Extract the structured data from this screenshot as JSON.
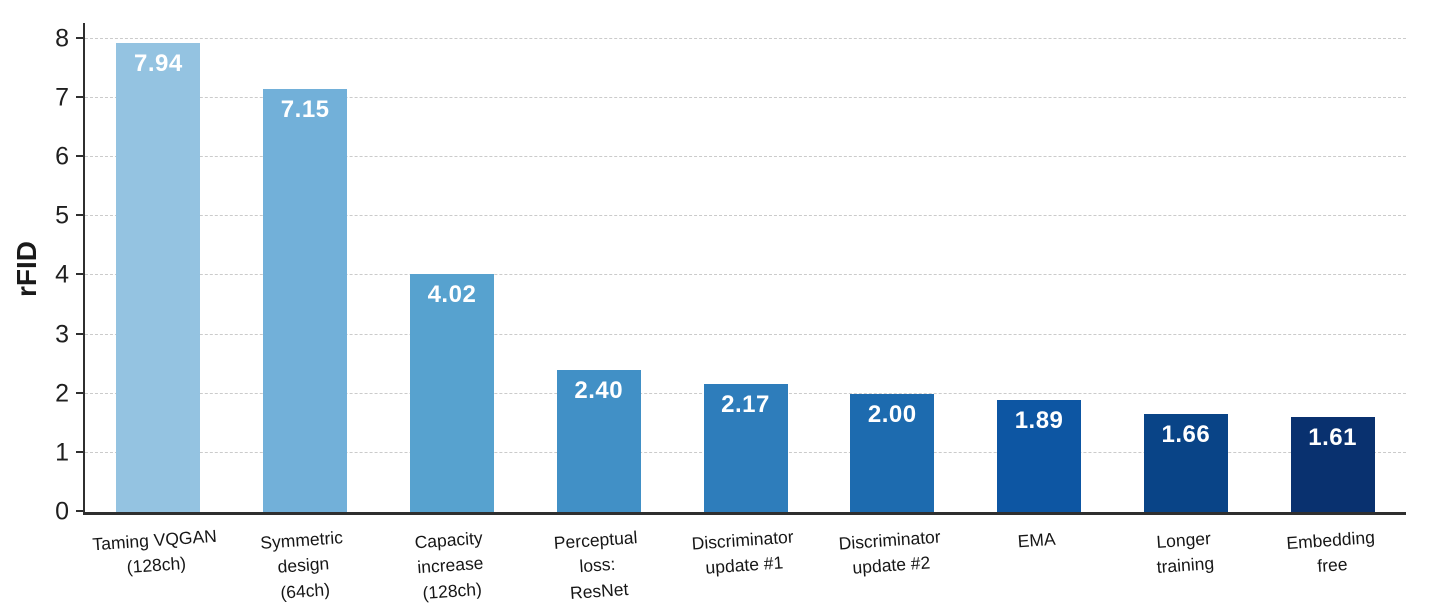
{
  "chart_data": {
    "type": "bar",
    "title": "",
    "xlabel": "",
    "ylabel": "rFID",
    "categories": [
      "Taming VQGAN\n(128ch)",
      "Symmetric\ndesign\n(64ch)",
      "Capacity\nincrease\n(128ch)",
      "Perceptual\nloss:\nResNet",
      "Discriminator\nupdate #1",
      "Discriminator\nupdate #2",
      "EMA",
      "Longer\ntraining",
      "Embedding\nfree"
    ],
    "values": [
      7.94,
      7.15,
      4.02,
      2.4,
      2.17,
      2.0,
      1.89,
      1.66,
      1.61
    ],
    "value_labels": [
      "7.94",
      "7.15",
      "4.02",
      "2.40",
      "2.17",
      "2.00",
      "1.89",
      "1.66",
      "1.61"
    ],
    "bar_colors": [
      "#94c3e1",
      "#72b0d9",
      "#57a2cf",
      "#4190c6",
      "#2e7dbb",
      "#1d6baf",
      "#0d56a3",
      "#094487",
      "#09316f"
    ],
    "yticks": [
      0,
      1,
      2,
      3,
      4,
      5,
      6,
      7,
      8
    ],
    "ylim": [
      0,
      8.27
    ],
    "grid": "horizontal-dashed",
    "legend": "none"
  },
  "colors": {
    "background": "#ffffff",
    "axis": "#2f2f2f",
    "gridline": "#cbcbcb",
    "tick_label": "#1f1f1f",
    "x_label": "#161616",
    "value_label": "#ffffff"
  }
}
